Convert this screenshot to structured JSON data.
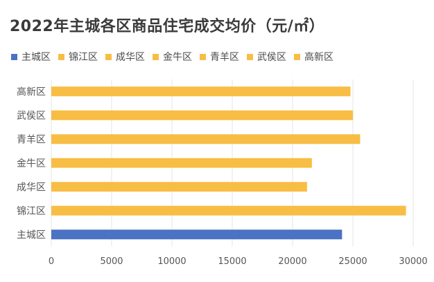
{
  "title": "2022年主城各区商品住宅成交均价（元/㎡）",
  "colors": {
    "highlight": "#4a73c4",
    "default": "#f8bd44",
    "axis_text": "#555555",
    "grid": "#e6e6e6"
  },
  "legend": [
    {
      "label": "主城区",
      "color": "#4a73c4"
    },
    {
      "label": "锦江区",
      "color": "#f8bd44"
    },
    {
      "label": "成华区",
      "color": "#f8bd44"
    },
    {
      "label": "金牛区",
      "color": "#f8bd44"
    },
    {
      "label": "青羊区",
      "color": "#f8bd44"
    },
    {
      "label": "武侯区",
      "color": "#f8bd44"
    },
    {
      "label": "高新区",
      "color": "#f8bd44"
    }
  ],
  "chart_data": {
    "type": "bar",
    "orientation": "horizontal",
    "title": "2022年主城各区商品住宅成交均价（元/㎡）",
    "categories": [
      "主城区",
      "锦江区",
      "成华区",
      "金牛区",
      "青羊区",
      "武侯区",
      "高新区"
    ],
    "values": [
      24100,
      29400,
      21200,
      21600,
      25600,
      25000,
      24800
    ],
    "xlim": [
      0,
      30000
    ],
    "xticks": [
      "0",
      "5000",
      "10000",
      "15000",
      "20000",
      "25000",
      "30000"
    ],
    "grid": true,
    "legend_position": "top-left"
  }
}
